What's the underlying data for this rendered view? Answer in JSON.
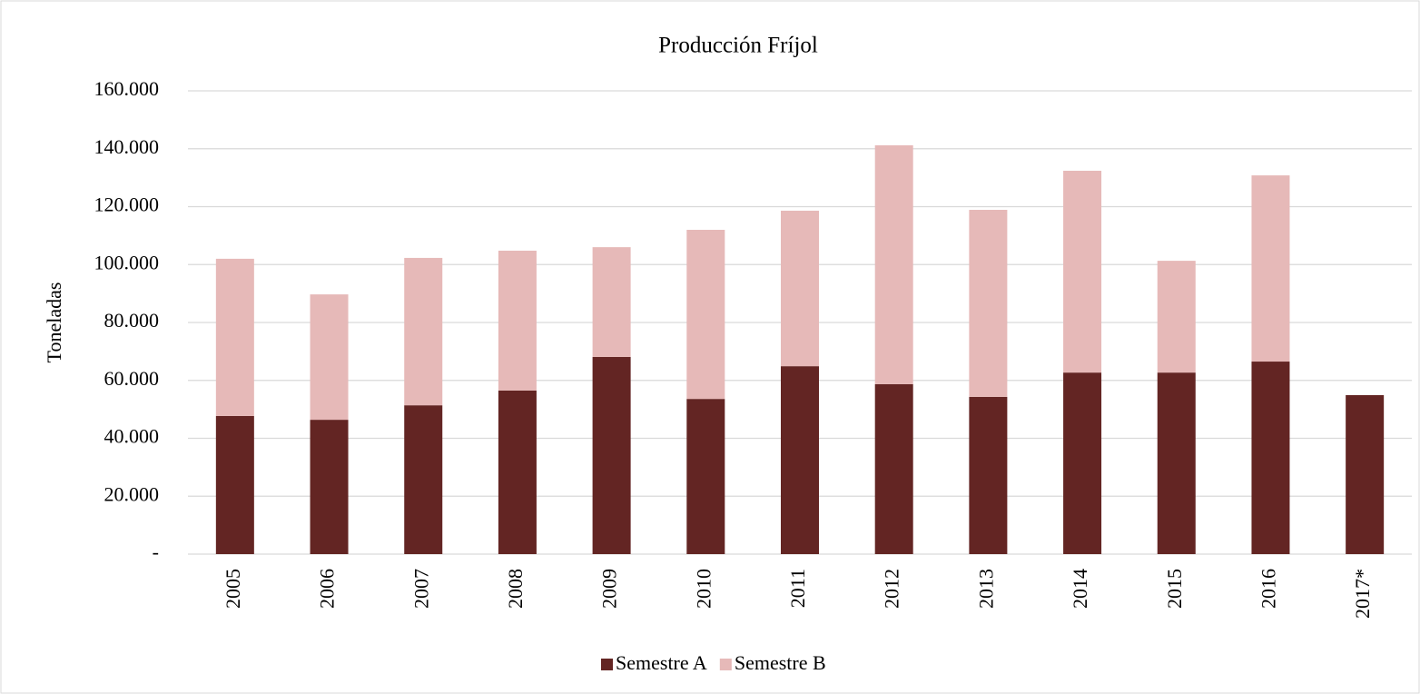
{
  "chart_data": {
    "type": "stacked_bar",
    "title": "Producción Fríjol",
    "y_label": "Toneladas",
    "categories": [
      "2005",
      "2006",
      "2007",
      "2008",
      "2009",
      "2010",
      "2011",
      "2012",
      "2013",
      "2014",
      "2015",
      "2016",
      "2017*"
    ],
    "series": [
      {
        "name": "Semestre A",
        "color": "#632523",
        "values": [
          47700,
          46400,
          51400,
          56500,
          68100,
          53600,
          64900,
          58700,
          54300,
          62700,
          62700,
          66500,
          54900
        ]
      },
      {
        "name": "Semestre B",
        "color": "#e6b9b8",
        "values": [
          54300,
          43300,
          50900,
          48300,
          37900,
          58400,
          53700,
          82500,
          64600,
          69700,
          38600,
          64300,
          null
        ]
      }
    ],
    "ylim": [
      0,
      160000
    ],
    "yticks": [
      {
        "value": 0,
        "label": "-"
      },
      {
        "value": 20000,
        "label": "20.000"
      },
      {
        "value": 40000,
        "label": "40.000"
      },
      {
        "value": 60000,
        "label": "60.000"
      },
      {
        "value": 80000,
        "label": "80.000"
      },
      {
        "value": 100000,
        "label": "100.000"
      },
      {
        "value": 120000,
        "label": "120.000"
      },
      {
        "value": 140000,
        "label": "140.000"
      },
      {
        "value": 160000,
        "label": "160.000"
      }
    ],
    "grid": true,
    "legend": "bottom"
  }
}
